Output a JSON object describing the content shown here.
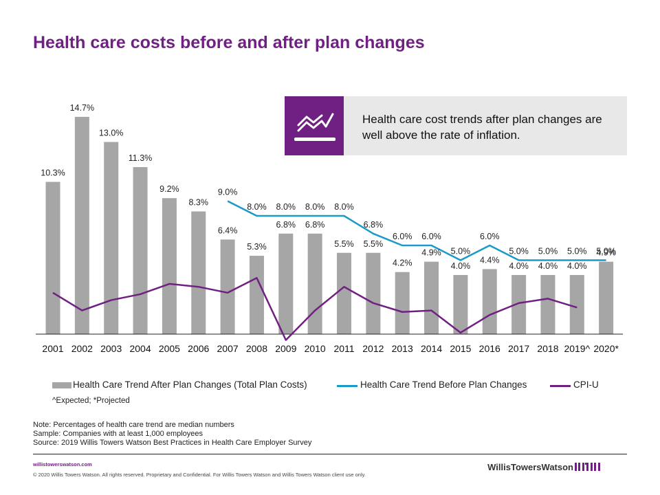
{
  "title": "Health care costs before and after plan changes",
  "callout": {
    "text": "Health care cost trends after plan changes are well above the rate of inflation.",
    "icon": "trend-chart-icon"
  },
  "legend": {
    "bar": "Health Care Trend After Plan Changes (Total Plan Costs)",
    "line1": "Health Care Trend Before Plan Changes",
    "line2": "CPI-U"
  },
  "footnote": "^Expected; *Projected",
  "notes": [
    "Note: Percentages of health care trend are median numbers",
    "Sample: Companies with at least 1,000 employees",
    "Source: 2019 Willis Towers Watson Best Practices in Health Care Employer Survey"
  ],
  "footer": {
    "site": "willistowerswatson.com",
    "copyright": "© 2020 Willis Towers Watson. All rights reserved. Proprietary and Confidential.  For Willis Towers Watson and Willis Towers Watson client use only.",
    "brand": "WillisTowersWatson"
  },
  "colors": {
    "bar": "#a6a6a6",
    "line_before": "#1a9ac9",
    "cpi": "#702082",
    "accent": "#702082"
  },
  "chart_data": {
    "type": "bar",
    "categories": [
      "2001",
      "2002",
      "2003",
      "2004",
      "2005",
      "2006",
      "2007",
      "2008",
      "2009",
      "2010",
      "2011",
      "2012",
      "2013",
      "2014",
      "2015",
      "2016",
      "2017",
      "2018",
      "2019^",
      "2020*"
    ],
    "bar_values": [
      10.3,
      14.7,
      13.0,
      11.3,
      9.2,
      8.3,
      6.4,
      5.3,
      6.8,
      6.8,
      5.5,
      5.5,
      4.2,
      4.9,
      4.0,
      4.4,
      4.0,
      4.0,
      4.0,
      4.9
    ],
    "bar_labels": [
      "10.3%",
      "14.7%",
      "13.0%",
      "11.3%",
      "9.2%",
      "8.3%",
      "6.4%",
      "5.3%",
      "6.8%",
      "6.8%",
      "5.5%",
      "5.5%",
      "4.2%",
      "4.9%",
      "4.0%",
      "4.4%",
      "4.0%",
      "4.0%",
      "4.0%",
      "4.9%"
    ],
    "line_before": [
      null,
      null,
      null,
      null,
      null,
      null,
      9.0,
      8.0,
      8.0,
      8.0,
      8.0,
      6.8,
      6.0,
      6.0,
      5.0,
      6.0,
      5.0,
      5.0,
      5.0,
      5.0
    ],
    "line_before_labels": [
      "",
      "",
      "",
      "",
      "",
      "",
      "9.0%",
      "8.0%",
      "8.0%",
      "8.0%",
      "8.0%",
      "6.8%",
      "6.0%",
      "6.0%",
      "5.0%",
      "6.0%",
      "5.0%",
      "5.0%",
      "5.0%",
      "5.0%"
    ],
    "cpi": [
      2.8,
      1.6,
      2.3,
      2.7,
      3.4,
      3.2,
      2.8,
      3.8,
      -0.4,
      1.6,
      3.2,
      2.1,
      1.5,
      1.6,
      0.1,
      1.3,
      2.1,
      2.4,
      1.8,
      null
    ],
    "ylim": [
      -0.5,
      16
    ]
  }
}
